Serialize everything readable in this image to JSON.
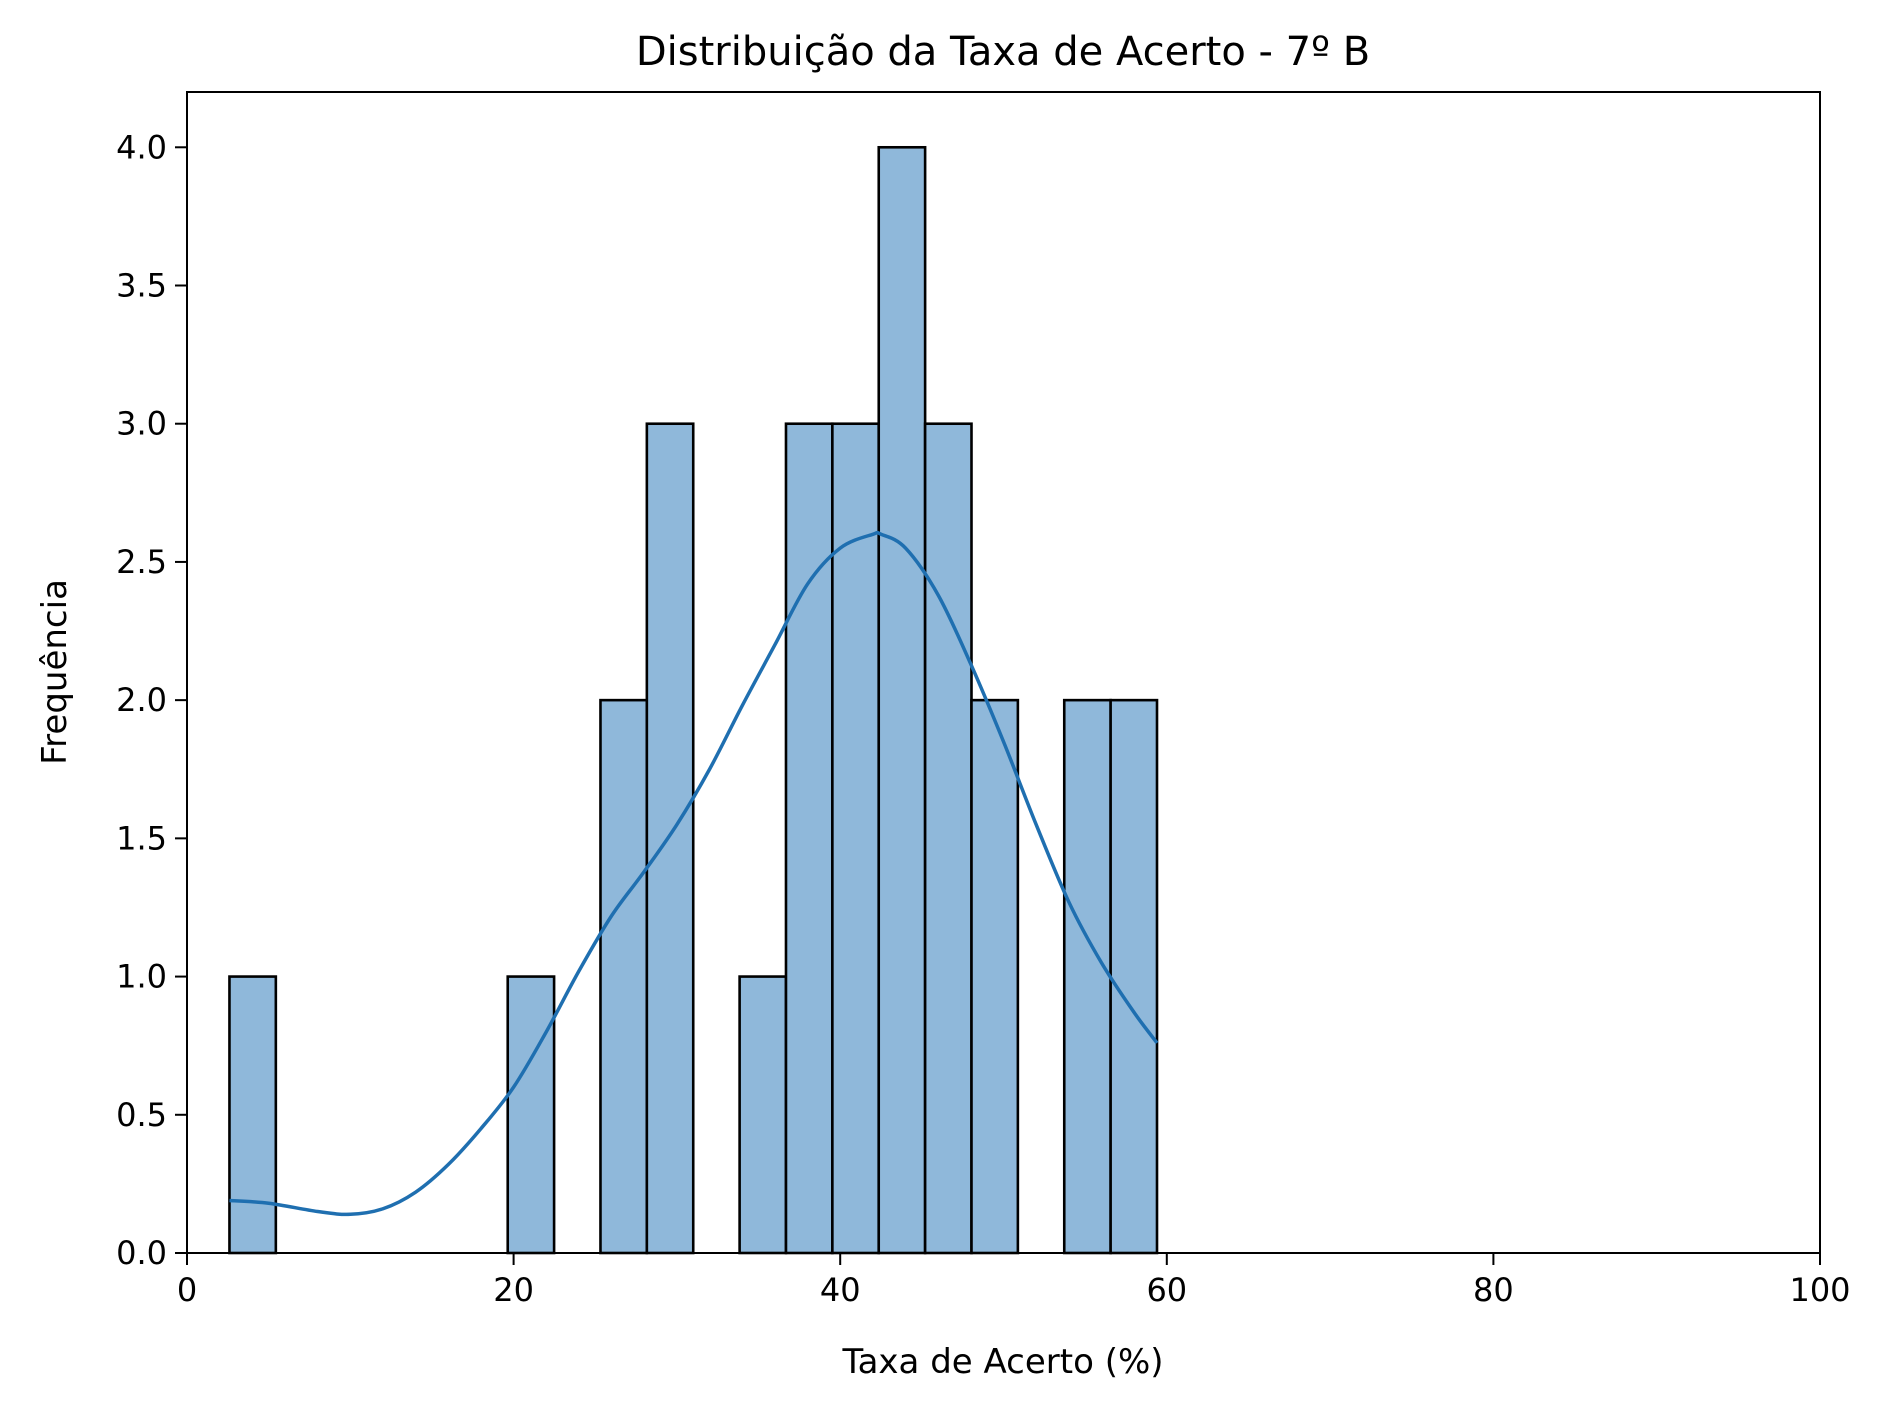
{
  "chart_data": {
    "type": "bar",
    "title": "Distribuição da Taxa de Acerto - 7º B",
    "xlabel": "Taxa de Acerto (%)",
    "ylabel": "Frequência",
    "xlim": [
      0,
      100
    ],
    "ylim": [
      0,
      4.2
    ],
    "x_ticks": [
      0,
      20,
      40,
      60,
      80,
      100
    ],
    "x_tick_labels": [
      "0",
      "20",
      "40",
      "60",
      "80",
      "100"
    ],
    "y_ticks": [
      0,
      0.5,
      1,
      1.5,
      2,
      2.5,
      3,
      3.5,
      4
    ],
    "y_tick_labels": [
      "0.0",
      "0.5",
      "1.0",
      "1.5",
      "2.0",
      "2.5",
      "3.0",
      "3.5",
      "4.0"
    ],
    "grid": false,
    "bins": [
      {
        "start": 2.6,
        "end": 5.44,
        "count": 1
      },
      {
        "start": 5.44,
        "end": 8.28,
        "count": 0
      },
      {
        "start": 8.28,
        "end": 11.12,
        "count": 0
      },
      {
        "start": 11.12,
        "end": 13.96,
        "count": 0
      },
      {
        "start": 13.96,
        "end": 16.8,
        "count": 0
      },
      {
        "start": 16.8,
        "end": 19.64,
        "count": 0
      },
      {
        "start": 19.64,
        "end": 22.48,
        "count": 1
      },
      {
        "start": 22.48,
        "end": 25.32,
        "count": 0
      },
      {
        "start": 25.32,
        "end": 28.16,
        "count": 2
      },
      {
        "start": 28.16,
        "end": 31.0,
        "count": 3
      },
      {
        "start": 31.0,
        "end": 33.84,
        "count": 0
      },
      {
        "start": 33.84,
        "end": 36.68,
        "count": 1
      },
      {
        "start": 36.68,
        "end": 39.52,
        "count": 3
      },
      {
        "start": 39.52,
        "end": 42.36,
        "count": 3
      },
      {
        "start": 42.36,
        "end": 45.2,
        "count": 4
      },
      {
        "start": 45.2,
        "end": 48.04,
        "count": 3
      },
      {
        "start": 48.04,
        "end": 50.88,
        "count": 2
      },
      {
        "start": 50.88,
        "end": 53.72,
        "count": 0
      },
      {
        "start": 53.72,
        "end": 56.56,
        "count": 2
      },
      {
        "start": 56.56,
        "end": 59.4,
        "count": 2
      }
    ],
    "kde_curve": {
      "x": [
        2.6,
        5,
        8,
        10,
        12,
        14,
        16,
        18,
        20,
        22,
        24,
        26,
        28,
        30,
        32,
        34,
        36,
        38,
        40,
        42,
        42.5,
        44,
        46,
        48,
        50,
        52,
        54,
        56,
        58,
        59.4
      ],
      "y": [
        0.19,
        0.18,
        0.15,
        0.14,
        0.16,
        0.22,
        0.32,
        0.45,
        0.6,
        0.8,
        1.02,
        1.22,
        1.38,
        1.55,
        1.75,
        1.98,
        2.2,
        2.42,
        2.55,
        2.6,
        2.6,
        2.55,
        2.38,
        2.13,
        1.85,
        1.55,
        1.27,
        1.05,
        0.87,
        0.76
      ]
    },
    "colors": {
      "bar_fill": "#8fb8da",
      "bar_edge": "#000000",
      "kde_line": "#1f6fb0"
    }
  }
}
